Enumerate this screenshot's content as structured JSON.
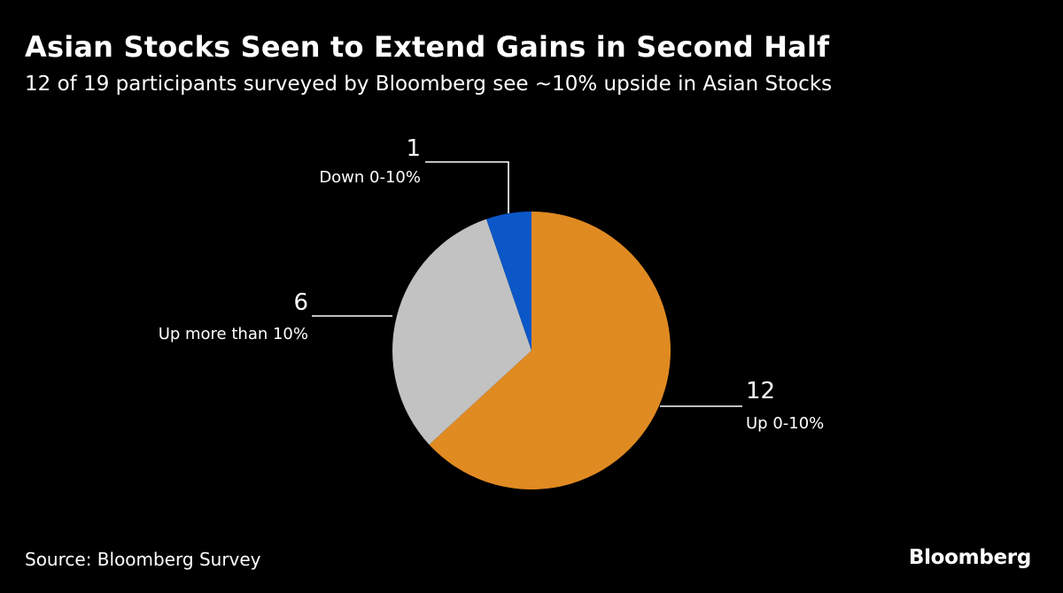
{
  "chart_data": {
    "type": "pie",
    "title": "Asian Stocks Seen to Extend Gains in Second Half",
    "subtitle": "12 of 19 participants surveyed by Bloomberg see ~10% upside in Asian Stocks",
    "slices": [
      {
        "label": "Up 0-10%",
        "value": 12,
        "color": "#E08A22"
      },
      {
        "label": "Up more than 10%",
        "value": 6,
        "color": "#C2C2C2"
      },
      {
        "label": "Down 0-10%",
        "value": 1,
        "color": "#0B57C7"
      }
    ],
    "start": "12 o'clock",
    "direction": "clockwise"
  },
  "source": "Source: Bloomberg Survey",
  "brand": "Bloomberg"
}
